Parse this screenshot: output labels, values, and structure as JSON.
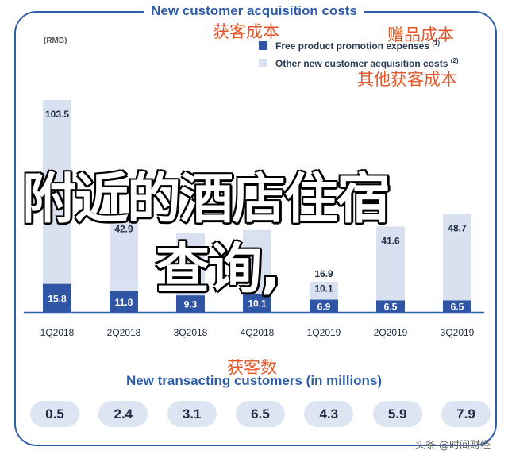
{
  "title": "New customer acquisition costs",
  "unit": "(RMB)",
  "cn_labels": {
    "cost": "获客成本",
    "gift": "赠品成本",
    "other": "其他获客成本",
    "txn": "获客数"
  },
  "legend": {
    "free": "Free product promotion expenses",
    "free_note": "(1)",
    "other": "Other new customer acquisition costs",
    "other_note": "(2)"
  },
  "colors": {
    "accent": "#2f5ea8",
    "bar_dark": "#2f55a4",
    "bar_light": "#d9e1f1",
    "cn": "#e2582c"
  },
  "chart_data": {
    "type": "bar",
    "stacked": true,
    "categories": [
      "1Q2018",
      "2Q2018",
      "3Q2018",
      "4Q2018",
      "1Q2019",
      "2Q2019",
      "3Q2019"
    ],
    "series": [
      {
        "name": "Free product promotion expenses",
        "values": [
          15.8,
          11.8,
          9.3,
          10.1,
          6.9,
          6.5,
          6.5
        ]
      },
      {
        "name": "Other new customer acquisition costs",
        "values": [
          103.5,
          42.9,
          35.0,
          36.0,
          10.1,
          41.6,
          48.7
        ]
      }
    ],
    "visible_labels": {
      "free": [
        "15.8",
        "11.8",
        "9.3",
        "10.1",
        "6.9",
        "6.5",
        "6.5"
      ],
      "other": [
        "103.5",
        "42.9",
        "",
        "",
        "10.1",
        "41.6",
        "48.7"
      ],
      "total": [
        "",
        "",
        "",
        "",
        "16.9",
        "",
        ""
      ]
    },
    "title": "New customer acquisition costs",
    "ylabel": "(RMB)",
    "legend_position": "top-right"
  },
  "transacting": {
    "title": "New transacting customers (in millions)",
    "values": [
      "0.5",
      "2.4",
      "3.1",
      "6.5",
      "4.3",
      "5.9",
      "7.9"
    ]
  },
  "overlay": {
    "line1": "附近的酒店住宿",
    "line2": "查询,"
  },
  "watermark": "头条 @时间财经"
}
